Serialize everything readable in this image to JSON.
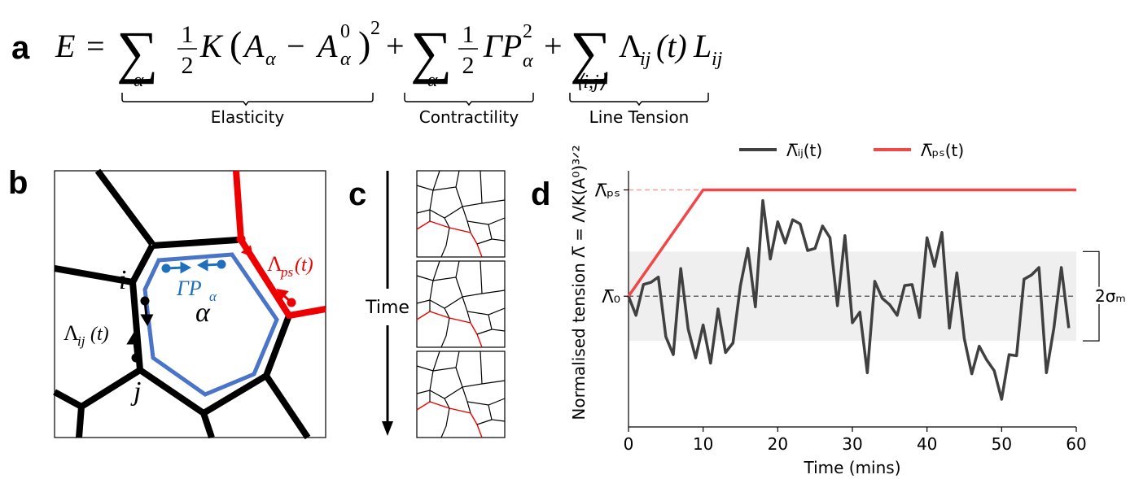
{
  "panel_a": {
    "label": "a",
    "equation": {
      "E": "E",
      "eq": "=",
      "sum": "∑",
      "plus": "+",
      "one": "1",
      "two": "2",
      "alpha": "α",
      "K": "K",
      "lparen": "(",
      "rparen": ")",
      "A": "A",
      "minus": "−",
      "zero": "0",
      "GammaP": "ΓP",
      "Lambda": "Λ",
      "ij": "ij",
      "t": "(t)",
      "L": "L",
      "pair_index": "⟨i,j⟩"
    },
    "braces": [
      "Elasticity",
      "Contractility",
      "Line Tension"
    ]
  },
  "panel_b": {
    "label": "b",
    "labels": {
      "i": "i",
      "j": "j",
      "alpha": "α",
      "GammaP": "ΓP",
      "Lambda": "Λ",
      "ps": "ps",
      "ij": "ij",
      "t": "(t)"
    }
  },
  "panel_c": {
    "label": "c",
    "time": "Time"
  },
  "chart_data": {
    "type": "line",
    "panel_label": "d",
    "xlabel": "Time (mins)",
    "ylabel": "Normalised tension Λ̅ = Λ/K(A⁰)³ᐟ²",
    "xlim": [
      0,
      60
    ],
    "xticks": [
      0,
      10,
      20,
      30,
      40,
      50,
      60
    ],
    "ylim": [
      -1.23,
      1.18
    ],
    "yticks": [
      {
        "value": 0,
        "label": "Λ̅₀"
      },
      {
        "value": 1,
        "label": "Λ̅ₚₛ"
      }
    ],
    "band": {
      "range": [
        -0.42,
        0.42
      ],
      "label": "2σₘ",
      "color": "#efefef"
    },
    "legend": "upper center",
    "series": [
      {
        "name": "Λ̅ᵢⱼ(t)",
        "color": "#404040",
        "x": [
          0,
          1,
          2,
          3,
          4,
          5,
          6,
          7,
          8,
          9,
          10,
          11,
          12,
          13,
          14,
          15,
          16,
          17,
          18,
          19,
          20,
          21,
          22,
          23,
          24,
          25,
          26,
          27,
          28,
          29,
          30,
          31,
          32,
          33,
          34,
          35,
          36,
          37,
          38,
          39,
          40,
          41,
          42,
          43,
          44,
          45,
          46,
          47,
          48,
          49,
          50,
          51,
          52,
          53,
          54,
          55,
          56,
          57,
          58,
          59
        ],
        "values": [
          0,
          -0.18,
          0.11,
          0.13,
          0.18,
          -0.38,
          -0.55,
          0.26,
          -0.31,
          -0.58,
          -0.27,
          -0.63,
          -0.12,
          -0.53,
          -0.44,
          0.1,
          0.45,
          -0.1,
          0.9,
          0.35,
          0.7,
          0.5,
          0.72,
          0.68,
          0.43,
          0.45,
          0.66,
          0.55,
          -0.09,
          0.57,
          -0.25,
          -0.15,
          -0.72,
          0.14,
          -0.02,
          -0.08,
          -0.18,
          0.1,
          0.11,
          -0.2,
          0.55,
          0.28,
          0.6,
          -0.3,
          0.22,
          -0.4,
          -0.73,
          -0.47,
          -0.6,
          -0.7,
          -0.97,
          -0.55,
          -0.56,
          0.16,
          0.2,
          0.27,
          -0.72,
          -0.3,
          0.27,
          -0.3
        ]
      },
      {
        "name": "Λ̅ₚₛ(t)",
        "color": "#f04848",
        "x": [
          0,
          10,
          60
        ],
        "values": [
          0,
          1,
          1
        ]
      }
    ]
  }
}
